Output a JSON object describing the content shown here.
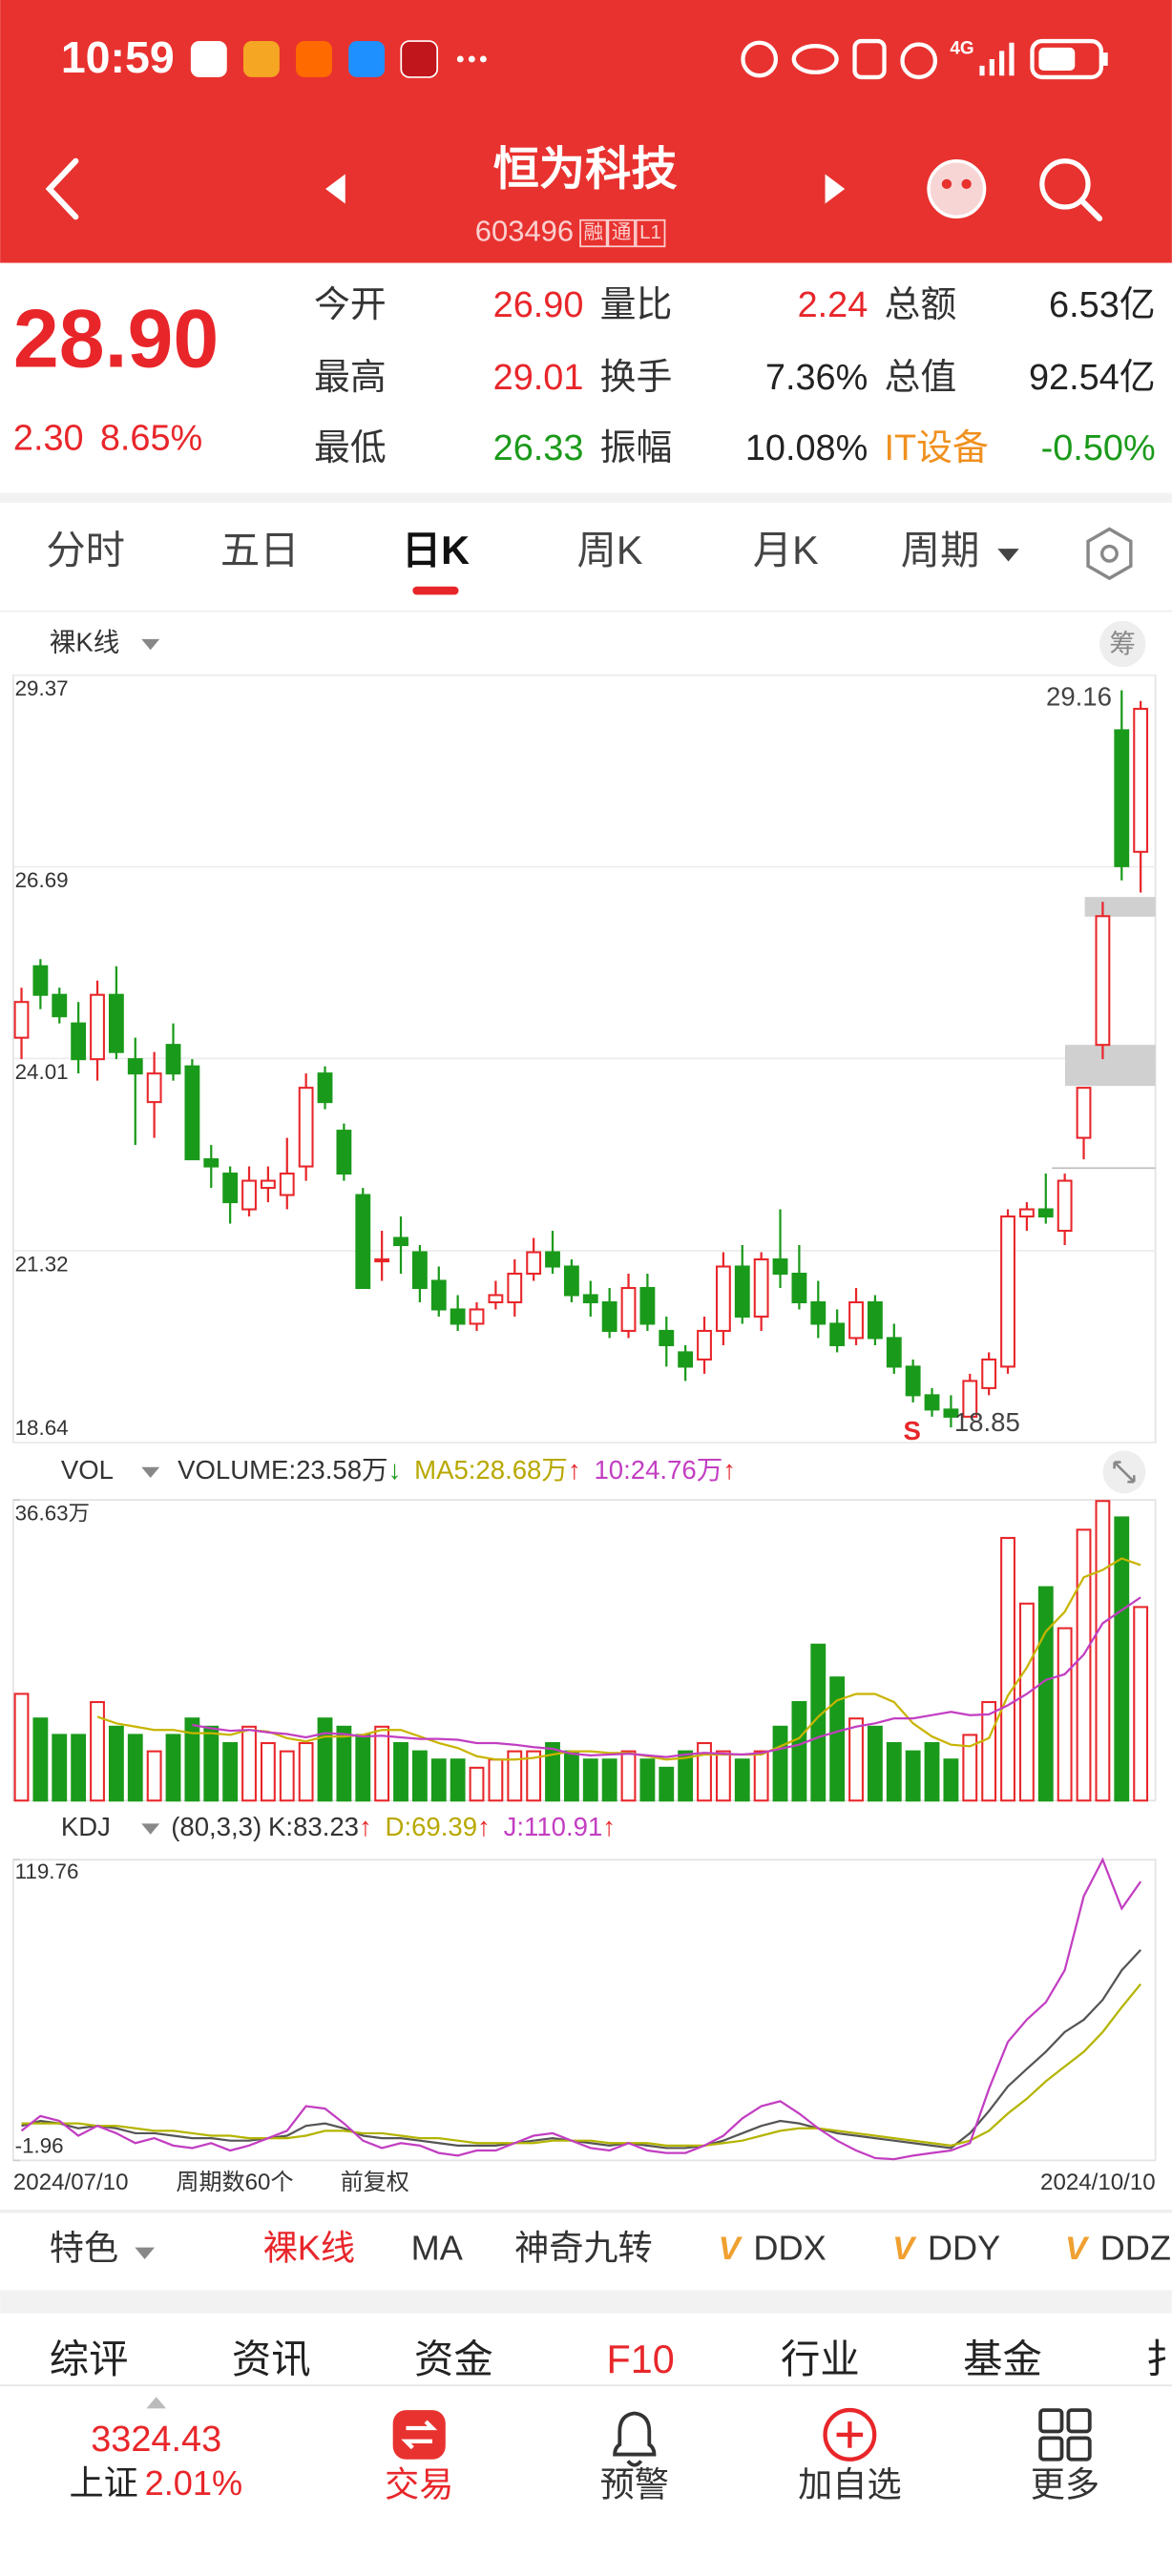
{
  "status_bar": {
    "time": "10:59",
    "network": "4G"
  },
  "header": {
    "title": "恒为科技",
    "code": "603496",
    "badges": [
      "融",
      "通",
      "L1"
    ]
  },
  "quote": {
    "price": "28.90",
    "change": "2.30",
    "change_pct": "8.65%",
    "color": "#e8262a",
    "fields": [
      [
        {
          "label": "今开",
          "value": "26.90",
          "color": "#e8262a"
        },
        {
          "label": "量比",
          "value": "2.24",
          "color": "#e8262a"
        },
        {
          "label": "总额",
          "value": "6.53亿",
          "color": "#222222"
        }
      ],
      [
        {
          "label": "最高",
          "value": "29.01",
          "color": "#e8262a"
        },
        {
          "label": "换手",
          "value": "7.36%",
          "color": "#222222"
        },
        {
          "label": "总值",
          "value": "92.54亿",
          "color": "#222222"
        }
      ],
      [
        {
          "label": "最低",
          "value": "26.33",
          "color": "#1a9a1a"
        },
        {
          "label": "振幅",
          "value": "10.08%",
          "color": "#222222"
        },
        {
          "label": "IT设备",
          "value": "-0.50%",
          "color": "#1a9a1a",
          "label_color": "#f0901e"
        }
      ]
    ]
  },
  "tabs": {
    "items": [
      "分时",
      "五日",
      "日K",
      "周K",
      "月K",
      "周期"
    ],
    "active": 2
  },
  "chart_data": [
    {
      "type": "candlestick",
      "label": "裸K线",
      "chip_button": "筹",
      "signal": "S",
      "up_color": "#e8262a",
      "down_color": "#1a9a1a",
      "ylim": [
        18.64,
        29.37
      ],
      "yticks": [
        18.64,
        21.32,
        24.01,
        26.69,
        29.37
      ],
      "high_index": 58,
      "low_index": 49,
      "signal_index": 46,
      "x_start": "2024/07/10",
      "x_end": "2024/10/10",
      "period_count": "周期数60个",
      "adjust": "前复权",
      "candles": [
        [
          24.3,
          25.0,
          24.0,
          24.8
        ],
        [
          25.3,
          25.4,
          24.7,
          24.9
        ],
        [
          24.9,
          25.0,
          24.5,
          24.6
        ],
        [
          24.5,
          24.8,
          23.8,
          24.0
        ],
        [
          24.0,
          25.1,
          23.7,
          24.9
        ],
        [
          24.9,
          25.3,
          24.0,
          24.1
        ],
        [
          24.0,
          24.3,
          22.8,
          23.8
        ],
        [
          23.4,
          24.1,
          22.9,
          23.8
        ],
        [
          24.2,
          24.5,
          23.7,
          23.8
        ],
        [
          23.9,
          24.0,
          22.6,
          22.6
        ],
        [
          22.6,
          22.8,
          22.2,
          22.5
        ],
        [
          22.4,
          22.5,
          21.7,
          22.0
        ],
        [
          21.9,
          22.5,
          21.8,
          22.3
        ],
        [
          22.2,
          22.5,
          22.0,
          22.3
        ],
        [
          22.1,
          22.9,
          21.9,
          22.4
        ],
        [
          22.5,
          23.8,
          22.3,
          23.6
        ],
        [
          23.8,
          23.9,
          23.3,
          23.4
        ],
        [
          23.0,
          23.1,
          22.3,
          22.4
        ],
        [
          22.1,
          22.2,
          20.8,
          20.8
        ],
        [
          21.2,
          21.6,
          20.9,
          21.2
        ],
        [
          21.5,
          21.8,
          21.0,
          21.4
        ],
        [
          21.3,
          21.4,
          20.6,
          20.8
        ],
        [
          20.9,
          21.1,
          20.4,
          20.5
        ],
        [
          20.5,
          20.7,
          20.2,
          20.3
        ],
        [
          20.3,
          20.6,
          20.2,
          20.5
        ],
        [
          20.6,
          20.9,
          20.5,
          20.7
        ],
        [
          20.6,
          21.2,
          20.4,
          21.0
        ],
        [
          21.0,
          21.5,
          20.9,
          21.3
        ],
        [
          21.3,
          21.6,
          21.0,
          21.1
        ],
        [
          21.1,
          21.2,
          20.6,
          20.7
        ],
        [
          20.7,
          20.9,
          20.4,
          20.6
        ],
        [
          20.6,
          20.8,
          20.1,
          20.2
        ],
        [
          20.2,
          21.0,
          20.1,
          20.8
        ],
        [
          20.8,
          21.0,
          20.2,
          20.3
        ],
        [
          20.2,
          20.4,
          19.7,
          20.0
        ],
        [
          19.9,
          20.0,
          19.5,
          19.7
        ],
        [
          19.8,
          20.4,
          19.6,
          20.2
        ],
        [
          20.2,
          21.3,
          20.0,
          21.1
        ],
        [
          21.1,
          21.4,
          20.3,
          20.4
        ],
        [
          20.4,
          21.3,
          20.2,
          21.2
        ],
        [
          21.2,
          21.9,
          20.8,
          21.0
        ],
        [
          21.0,
          21.4,
          20.5,
          20.6
        ],
        [
          20.6,
          20.9,
          20.1,
          20.3
        ],
        [
          20.3,
          20.5,
          19.9,
          20.0
        ],
        [
          20.1,
          20.8,
          20.0,
          20.6
        ],
        [
          20.6,
          20.7,
          20.0,
          20.1
        ],
        [
          20.1,
          20.3,
          19.6,
          19.7
        ],
        [
          19.7,
          19.8,
          19.2,
          19.3
        ],
        [
          19.3,
          19.4,
          19.0,
          19.1
        ],
        [
          19.1,
          19.3,
          18.85,
          19.0
        ],
        [
          19.0,
          19.6,
          19.0,
          19.5
        ],
        [
          19.4,
          19.9,
          19.3,
          19.8
        ],
        [
          19.7,
          21.9,
          19.6,
          21.8
        ],
        [
          21.8,
          22.0,
          21.6,
          21.9
        ],
        [
          21.9,
          22.4,
          21.7,
          21.8
        ],
        [
          21.6,
          22.4,
          21.4,
          22.3
        ],
        [
          22.9,
          23.6,
          22.6,
          23.6
        ],
        [
          24.2,
          26.2,
          24.0,
          26.0
        ],
        [
          28.6,
          29.16,
          26.5,
          26.7
        ],
        [
          26.9,
          29.01,
          26.33,
          28.9
        ]
      ]
    },
    {
      "type": "bar",
      "title": "VOL",
      "ylim": [
        0,
        36.63
      ],
      "yticks": [
        {
          "value": 36.63,
          "label": "36.63万"
        }
      ],
      "legend_separator": ":",
      "values": [
        13,
        10,
        8,
        8,
        12,
        9,
        8,
        6,
        8,
        10,
        9,
        7,
        9,
        7,
        6,
        7,
        10,
        9,
        8,
        9,
        7,
        6,
        5,
        5,
        4,
        5,
        6,
        6,
        7,
        6,
        5,
        5,
        6,
        5,
        4,
        6,
        7,
        6,
        5,
        6,
        9,
        12,
        19,
        15,
        10,
        9,
        7,
        6,
        7,
        5,
        8,
        12,
        32,
        24,
        26,
        21,
        33,
        36.5,
        34.5,
        23.58
      ],
      "legend": [
        {
          "name": "VOLUME",
          "value_label": "23.58万",
          "trend": "↓",
          "trend_color": "#1a9a1a",
          "color": "#333333"
        },
        {
          "name": "MA5",
          "value_label": "28.68万",
          "trend": "↑",
          "trend_color": "#e8262a",
          "color": "#b8a800"
        },
        {
          "name": "10",
          "value_label": "24.76万",
          "trend": "↑",
          "trend_color": "#e8262a",
          "color": "#c23ec2"
        }
      ],
      "series": [
        {
          "name": "MA5",
          "color": "#c8b400",
          "values": [
            null,
            null,
            null,
            null,
            10.2,
            9.4,
            9.0,
            8.6,
            8.6,
            8.2,
            8.2,
            8.0,
            8.6,
            8.4,
            7.6,
            7.2,
            7.8,
            7.8,
            8.0,
            8.6,
            8.6,
            7.8,
            7.0,
            6.4,
            5.4,
            5.0,
            5.0,
            5.2,
            5.6,
            6.0,
            6.0,
            5.8,
            5.8,
            5.4,
            5.0,
            5.2,
            5.6,
            5.6,
            5.6,
            5.6,
            6.6,
            7.6,
            10.2,
            12.2,
            13.0,
            13.0,
            12.0,
            9.4,
            7.8,
            6.8,
            6.6,
            7.6,
            12.8,
            16.2,
            20.6,
            23.0,
            27.2,
            28.1,
            29.5,
            28.68
          ]
        },
        {
          "name": "10",
          "color": "#c23ec2",
          "values": [
            null,
            null,
            null,
            null,
            null,
            null,
            null,
            null,
            null,
            9.2,
            8.8,
            8.5,
            8.6,
            8.3,
            8.1,
            7.7,
            8.2,
            8.1,
            7.8,
            7.9,
            7.7,
            7.5,
            7.5,
            7.4,
            7.0,
            7.0,
            6.8,
            6.5,
            6.3,
            5.7,
            5.5,
            5.6,
            5.7,
            5.5,
            5.3,
            5.6,
            5.8,
            5.7,
            5.6,
            5.8,
            6.3,
            6.8,
            7.7,
            8.4,
            9.0,
            9.4,
            10.0,
            10.0,
            10.4,
            10.8,
            10.4,
            10.5,
            11.6,
            13.0,
            14.7,
            15.4,
            17.8,
            21.6,
            23.2,
            24.76
          ]
        }
      ]
    },
    {
      "type": "line",
      "title": "KDJ",
      "params": "(80,3,3)",
      "ylim": [
        -1.96,
        119.76
      ],
      "yticks": [
        -1.96,
        119.76
      ],
      "legend_separator": ":",
      "series": [
        {
          "name": "K",
          "color": "#555555",
          "label_color": "#333333",
          "trend": "↑",
          "trend_color": "#e8262a",
          "values": [
            12,
            14,
            13,
            11,
            12,
            11,
            9,
            9,
            8,
            7,
            7,
            6,
            6,
            7,
            8,
            12,
            13,
            11,
            8,
            7,
            7,
            6,
            5,
            4,
            4,
            4,
            5,
            6,
            7,
            6,
            5,
            4,
            5,
            4,
            3,
            3,
            4,
            6,
            9,
            12,
            14,
            13,
            11,
            9,
            8,
            7,
            6,
            5,
            4,
            3,
            9,
            18,
            28,
            35,
            42,
            50,
            55,
            63,
            75,
            83.23
          ]
        },
        {
          "name": "D",
          "color": "#b4b400",
          "label_color": "#b8a800",
          "trend": "↑",
          "trend_color": "#e8262a",
          "values": [
            13,
            13,
            13,
            13,
            12,
            12,
            11,
            10,
            10,
            9,
            8,
            8,
            7,
            7,
            7,
            8,
            10,
            10,
            9,
            9,
            8,
            7,
            7,
            6,
            5,
            5,
            5,
            5,
            6,
            6,
            6,
            5,
            5,
            5,
            4,
            4,
            4,
            5,
            6,
            8,
            10,
            11,
            11,
            10,
            9,
            8,
            7,
            6,
            5,
            4,
            6,
            10,
            17,
            23,
            30,
            36,
            42,
            50,
            60,
            69.39
          ]
        },
        {
          "name": "J",
          "color": "#c23ec2",
          "label_color": "#c23ec2",
          "trend": "↑",
          "trend_color": "#e8262a",
          "values": [
            10,
            16,
            14,
            8,
            12,
            9,
            5,
            7,
            4,
            3,
            5,
            2,
            4,
            7,
            10,
            20,
            19,
            13,
            6,
            3,
            5,
            4,
            1,
            0,
            2,
            2,
            5,
            8,
            9,
            6,
            3,
            2,
            5,
            2,
            1,
            1,
            4,
            8,
            15,
            20,
            22,
            17,
            11,
            6,
            2,
            -1,
            -1.5,
            0,
            1,
            2,
            5,
            27,
            46,
            55,
            62,
            75,
            105,
            119.76,
            100,
            110.91
          ]
        }
      ]
    }
  ],
  "toolbar": {
    "feature": "特色",
    "items": [
      {
        "text": "裸K线",
        "color": "#e8262a"
      },
      {
        "text": "MA",
        "color": "#333333"
      },
      {
        "text": "神奇九转",
        "color": "#333333"
      },
      {
        "text": "DDX",
        "color": "#333333",
        "badge": "V"
      },
      {
        "text": "DDY",
        "color": "#333333",
        "badge": "V"
      },
      {
        "text": "DDZ",
        "color": "#333333",
        "badge": "V"
      }
    ]
  },
  "sub_tabs": {
    "items": [
      "综评",
      "资讯",
      "资金",
      "F10",
      "行业",
      "基金",
      "扌"
    ],
    "active": 3
  },
  "bottom_nav": {
    "index_value": "3324.43",
    "index_name": "上证",
    "index_change": "2.01%",
    "items": [
      "交易",
      "预警",
      "加自选",
      "更多"
    ]
  }
}
